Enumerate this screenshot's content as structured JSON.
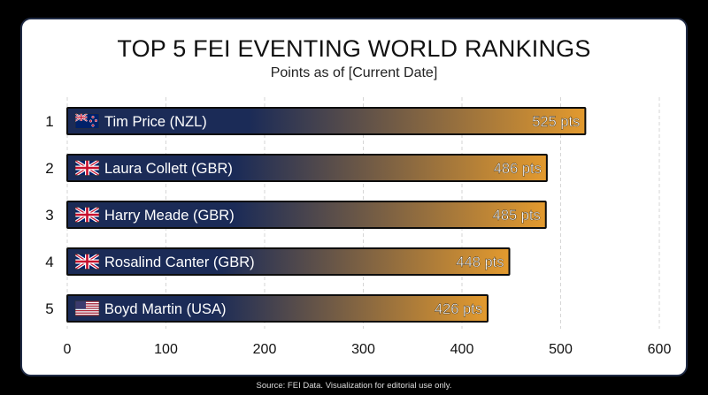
{
  "chart_data": {
    "type": "bar",
    "orientation": "horizontal",
    "title": "TOP 5 FEI EVENTING WORLD RANKINGS",
    "subtitle": "Points as of [Current Date]",
    "xlabel": "",
    "ylabel": "",
    "xlim": [
      0,
      600
    ],
    "xticks": [
      "0",
      "100",
      "200",
      "300",
      "400",
      "500",
      "600"
    ],
    "grid": true,
    "legend": "none",
    "value_suffix": " pts",
    "colors": {
      "bar_start": "#1b2b57",
      "bar_end": "#e39a2e",
      "bar_outline": "#0d0d0d",
      "grid": "#d6d6d6"
    },
    "bars": [
      {
        "rank": "1",
        "name": "Tim Price (NZL)",
        "value": 525,
        "label": "525 pts",
        "flag": "nz-flag-icon"
      },
      {
        "rank": "2",
        "name": "Laura Collett (GBR)",
        "value": 486,
        "label": "486 pts",
        "flag": "uk-flag-icon"
      },
      {
        "rank": "3",
        "name": "Harry Meade (GBR)",
        "value": 485,
        "label": "485 pts",
        "flag": "uk-flag-icon"
      },
      {
        "rank": "4",
        "name": "Rosalind Canter (GBR)",
        "value": 448,
        "label": "448 pts",
        "flag": "uk-flag-icon"
      },
      {
        "rank": "5",
        "name": "Boyd Martin (USA)",
        "value": 426,
        "label": "426 pts",
        "flag": "us-flag-icon"
      }
    ]
  },
  "footer": {
    "source": "Source: FEI Data. Visualization for editorial use only."
  }
}
